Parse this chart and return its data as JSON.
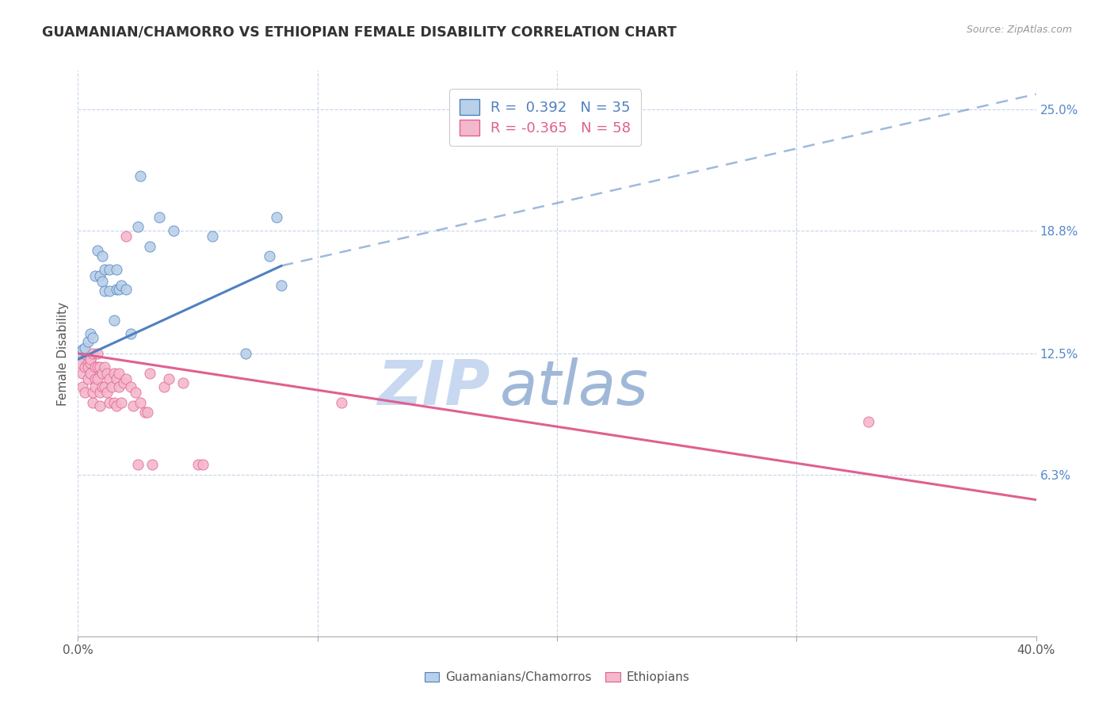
{
  "title": "GUAMANIAN/CHAMORRO VS ETHIOPIAN FEMALE DISABILITY CORRELATION CHART",
  "source": "Source: ZipAtlas.com",
  "ylabel": "Female Disability",
  "xlim": [
    0.0,
    0.4
  ],
  "ylim": [
    -0.02,
    0.27
  ],
  "yticks": [
    0.063,
    0.125,
    0.188,
    0.25
  ],
  "ytick_labels": [
    "6.3%",
    "12.5%",
    "18.8%",
    "25.0%"
  ],
  "xticks": [
    0.0,
    0.1,
    0.2,
    0.3,
    0.4
  ],
  "xtick_labels": [
    "0.0%",
    "",
    "",
    "",
    "40.0%"
  ],
  "legend_r1": "R =  0.392",
  "legend_n1": "N = 35",
  "legend_r2": "R = -0.365",
  "legend_n2": "N = 58",
  "blue_color": "#b8d0e8",
  "pink_color": "#f4b8cc",
  "line_blue": "#5080c0",
  "line_pink": "#e06090",
  "blue_scatter": [
    [
      0.001,
      0.126
    ],
    [
      0.002,
      0.127
    ],
    [
      0.003,
      0.128
    ],
    [
      0.003,
      0.122
    ],
    [
      0.004,
      0.131
    ],
    [
      0.004,
      0.118
    ],
    [
      0.005,
      0.135
    ],
    [
      0.005,
      0.122
    ],
    [
      0.006,
      0.133
    ],
    [
      0.007,
      0.165
    ],
    [
      0.008,
      0.178
    ],
    [
      0.009,
      0.165
    ],
    [
      0.01,
      0.175
    ],
    [
      0.01,
      0.162
    ],
    [
      0.011,
      0.168
    ],
    [
      0.011,
      0.157
    ],
    [
      0.013,
      0.168
    ],
    [
      0.013,
      0.157
    ],
    [
      0.015,
      0.142
    ],
    [
      0.016,
      0.168
    ],
    [
      0.016,
      0.158
    ],
    [
      0.017,
      0.158
    ],
    [
      0.018,
      0.16
    ],
    [
      0.02,
      0.158
    ],
    [
      0.022,
      0.135
    ],
    [
      0.025,
      0.19
    ],
    [
      0.026,
      0.216
    ],
    [
      0.03,
      0.18
    ],
    [
      0.034,
      0.195
    ],
    [
      0.04,
      0.188
    ],
    [
      0.056,
      0.185
    ],
    [
      0.07,
      0.125
    ],
    [
      0.08,
      0.175
    ],
    [
      0.083,
      0.195
    ],
    [
      0.085,
      0.16
    ]
  ],
  "pink_scatter": [
    [
      0.001,
      0.12
    ],
    [
      0.002,
      0.108
    ],
    [
      0.002,
      0.115
    ],
    [
      0.003,
      0.118
    ],
    [
      0.003,
      0.105
    ],
    [
      0.004,
      0.12
    ],
    [
      0.004,
      0.112
    ],
    [
      0.004,
      0.118
    ],
    [
      0.005,
      0.12
    ],
    [
      0.005,
      0.122
    ],
    [
      0.005,
      0.115
    ],
    [
      0.006,
      0.125
    ],
    [
      0.006,
      0.1
    ],
    [
      0.006,
      0.105
    ],
    [
      0.007,
      0.118
    ],
    [
      0.007,
      0.112
    ],
    [
      0.007,
      0.108
    ],
    [
      0.008,
      0.125
    ],
    [
      0.008,
      0.118
    ],
    [
      0.008,
      0.112
    ],
    [
      0.009,
      0.118
    ],
    [
      0.009,
      0.105
    ],
    [
      0.009,
      0.098
    ],
    [
      0.01,
      0.115
    ],
    [
      0.01,
      0.108
    ],
    [
      0.011,
      0.118
    ],
    [
      0.011,
      0.108
    ],
    [
      0.012,
      0.115
    ],
    [
      0.012,
      0.105
    ],
    [
      0.013,
      0.112
    ],
    [
      0.013,
      0.1
    ],
    [
      0.014,
      0.108
    ],
    [
      0.015,
      0.115
    ],
    [
      0.015,
      0.1
    ],
    [
      0.016,
      0.112
    ],
    [
      0.016,
      0.098
    ],
    [
      0.017,
      0.115
    ],
    [
      0.017,
      0.108
    ],
    [
      0.018,
      0.1
    ],
    [
      0.019,
      0.11
    ],
    [
      0.02,
      0.185
    ],
    [
      0.02,
      0.112
    ],
    [
      0.022,
      0.108
    ],
    [
      0.023,
      0.098
    ],
    [
      0.024,
      0.105
    ],
    [
      0.025,
      0.068
    ],
    [
      0.026,
      0.1
    ],
    [
      0.028,
      0.095
    ],
    [
      0.029,
      0.095
    ],
    [
      0.03,
      0.115
    ],
    [
      0.031,
      0.068
    ],
    [
      0.036,
      0.108
    ],
    [
      0.038,
      0.112
    ],
    [
      0.044,
      0.11
    ],
    [
      0.05,
      0.068
    ],
    [
      0.052,
      0.068
    ],
    [
      0.11,
      0.1
    ],
    [
      0.33,
      0.09
    ]
  ],
  "blue_solid_line": [
    [
      0.0,
      0.122
    ],
    [
      0.085,
      0.17
    ]
  ],
  "blue_dashed_line": [
    [
      0.085,
      0.17
    ],
    [
      0.4,
      0.258
    ]
  ],
  "pink_trendline": [
    [
      0.0,
      0.125
    ],
    [
      0.4,
      0.05
    ]
  ],
  "background_color": "#ffffff",
  "grid_color": "#c8d4e8",
  "watermark_zip": "ZIP",
  "watermark_atlas": "atlas",
  "watermark_color_zip": "#c8d8f0",
  "watermark_color_atlas": "#a0b8d8"
}
